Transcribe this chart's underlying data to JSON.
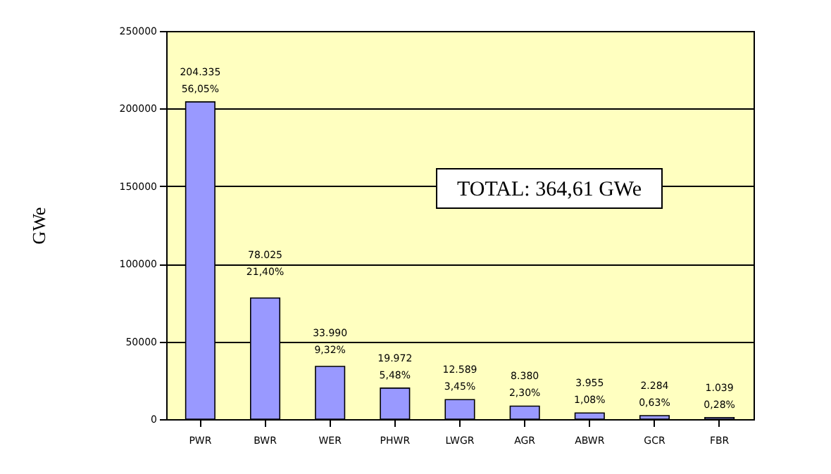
{
  "chart_data": {
    "type": "bar",
    "ylabel": "GWe",
    "categories": [
      "PWR",
      "BWR",
      "WER",
      "PHWR",
      "LWGR",
      "AGR",
      "ABWR",
      "GCR",
      "FBR"
    ],
    "values": [
      204335,
      78025,
      33990,
      19972,
      12589,
      8380,
      3955,
      2284,
      1039
    ],
    "value_labels": [
      "204.335\n56,05%",
      "78.025\n21,40%",
      "33.990\n9,32%",
      "19.972\n5,48%",
      "12.589\n3,45%",
      "8.380\n2,30%",
      "3.955\n1,08%",
      "2.284\n0,63%",
      "1.039\n0,28%"
    ],
    "color": "#9999ff",
    "ylim": [
      0,
      250000
    ],
    "yticks": [
      0,
      50000,
      100000,
      150000,
      200000,
      250000
    ],
    "grid": "y",
    "annotations": [
      "TOTAL: 364,61 GWe"
    ]
  }
}
